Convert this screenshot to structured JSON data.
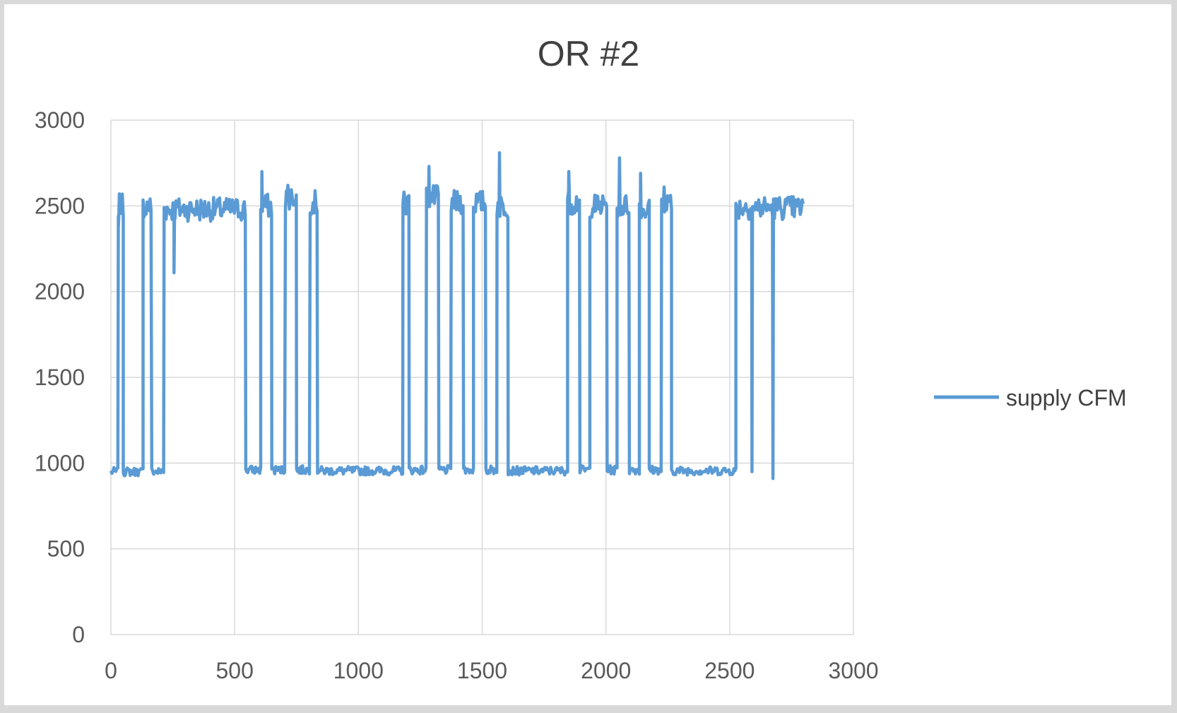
{
  "chart_data": {
    "type": "line",
    "title": "OR #2",
    "xlabel": "",
    "ylabel": "",
    "xlim": [
      0,
      3000
    ],
    "ylim": [
      0,
      3000
    ],
    "x_ticks": [
      "0",
      "500",
      "1000",
      "1500",
      "2000",
      "2500",
      "3000"
    ],
    "y_ticks": [
      "0",
      "500",
      "1000",
      "1500",
      "2000",
      "2500",
      "3000"
    ],
    "grid": true,
    "legend_position": "right",
    "series": [
      {
        "name": "supply CFM",
        "color": "#5b9bd5",
        "segments": [
          [
            0,
            30,
            950
          ],
          [
            30,
            50,
            2500
          ],
          [
            50,
            130,
            950
          ],
          [
            130,
            165,
            2500
          ],
          [
            165,
            215,
            950
          ],
          [
            215,
            545,
            2480
          ],
          [
            545,
            605,
            960
          ],
          [
            605,
            650,
            2500
          ],
          [
            650,
            705,
            960
          ],
          [
            705,
            750,
            2550
          ],
          [
            750,
            805,
            960
          ],
          [
            805,
            835,
            2520
          ],
          [
            835,
            1180,
            955
          ],
          [
            1180,
            1205,
            2520
          ],
          [
            1205,
            1275,
            960
          ],
          [
            1275,
            1325,
            2550
          ],
          [
            1325,
            1375,
            960
          ],
          [
            1375,
            1425,
            2520
          ],
          [
            1425,
            1465,
            960
          ],
          [
            1465,
            1515,
            2520
          ],
          [
            1515,
            1560,
            960
          ],
          [
            1560,
            1605,
            2500
          ],
          [
            1605,
            1845,
            955
          ],
          [
            1845,
            1895,
            2520
          ],
          [
            1895,
            1935,
            960
          ],
          [
            1935,
            2005,
            2500
          ],
          [
            2005,
            2045,
            960
          ],
          [
            2045,
            2095,
            2500
          ],
          [
            2095,
            2135,
            960
          ],
          [
            2135,
            2175,
            2480
          ],
          [
            2175,
            2225,
            960
          ],
          [
            2225,
            2265,
            2500
          ],
          [
            2265,
            2525,
            955
          ],
          [
            2525,
            2800,
            2490
          ]
        ],
        "spikes": [
          [
            30,
            2380
          ],
          [
            610,
            2700
          ],
          [
            715,
            2620
          ],
          [
            1285,
            2730
          ],
          [
            1570,
            2810
          ],
          [
            1850,
            2700
          ],
          [
            2055,
            2780
          ],
          [
            2140,
            2690
          ],
          [
            2235,
            2610
          ],
          [
            255,
            2110
          ],
          [
            2675,
            910
          ],
          [
            2590,
            950
          ]
        ]
      }
    ]
  }
}
